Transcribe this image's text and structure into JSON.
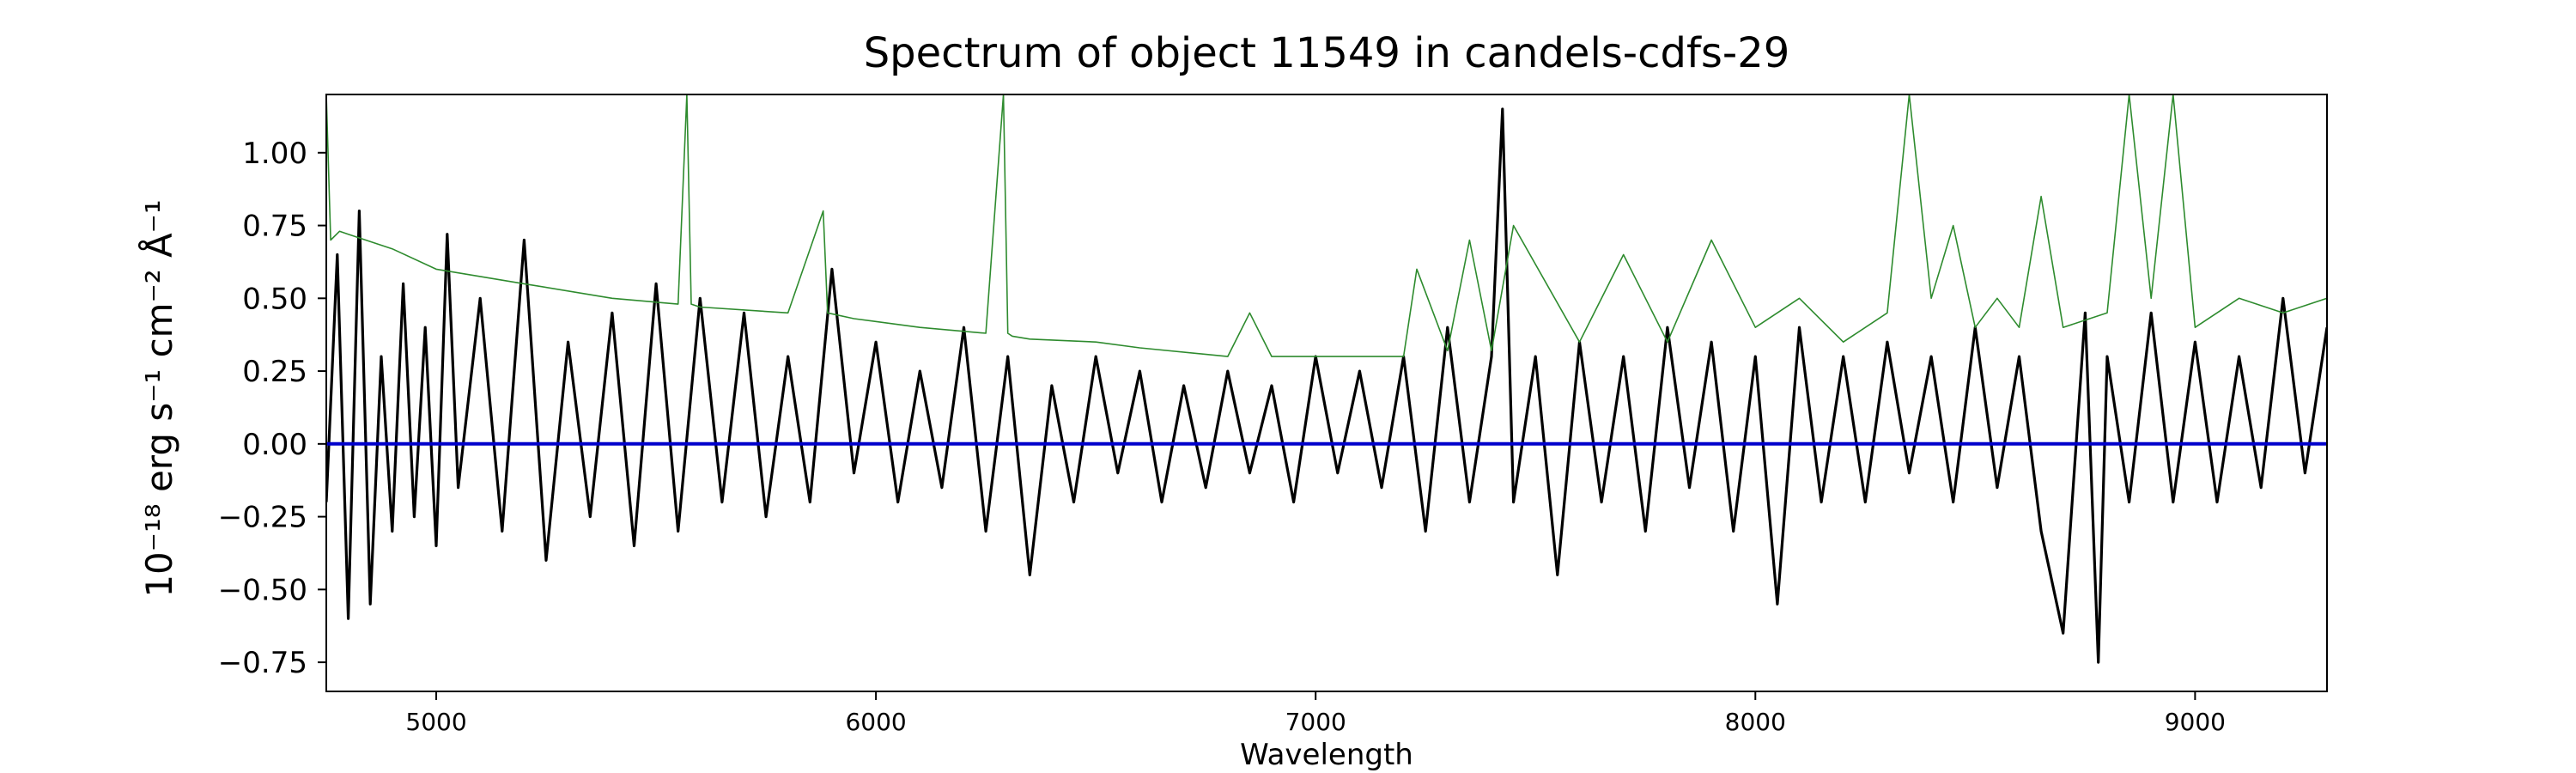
{
  "chart_data": {
    "type": "line",
    "title": "Spectrum of object 11549 in candels-cdfs-29",
    "xlabel": "Wavelength",
    "ylabel": "10⁻¹⁸ erg s⁻¹ cm⁻² Å⁻¹",
    "xlim": [
      4750,
      9300
    ],
    "ylim": [
      -0.85,
      1.2
    ],
    "x_ticks": [
      5000,
      6000,
      7000,
      8000,
      9000
    ],
    "y_ticks": [
      -0.75,
      -0.5,
      -0.25,
      0.0,
      0.25,
      0.5,
      0.75,
      1.0
    ],
    "x_tick_labels": [
      "5000",
      "6000",
      "7000",
      "8000",
      "9000"
    ],
    "y_tick_labels": [
      "−0.75",
      "−0.50",
      "−0.25",
      "0.00",
      "0.25",
      "0.50",
      "0.75",
      "1.00"
    ],
    "grid": false,
    "series": [
      {
        "color": "#000000",
        "x": [
          4750,
          4775,
          4800,
          4825,
          4850,
          4875,
          4900,
          4925,
          4950,
          4975,
          5000,
          5025,
          5050,
          5100,
          5150,
          5200,
          5250,
          5300,
          5350,
          5400,
          5450,
          5500,
          5550,
          5600,
          5650,
          5700,
          5750,
          5800,
          5850,
          5900,
          5950,
          6000,
          6050,
          6100,
          6150,
          6200,
          6250,
          6300,
          6350,
          6400,
          6450,
          6500,
          6550,
          6600,
          6650,
          6700,
          6750,
          6800,
          6850,
          6900,
          6950,
          7000,
          7050,
          7100,
          7150,
          7200,
          7250,
          7300,
          7350,
          7400,
          7425,
          7450,
          7500,
          7550,
          7600,
          7650,
          7700,
          7750,
          7800,
          7850,
          7900,
          7950,
          8000,
          8050,
          8100,
          8150,
          8200,
          8250,
          8300,
          8350,
          8400,
          8450,
          8500,
          8550,
          8600,
          8650,
          8700,
          8750,
          8780,
          8800,
          8850,
          8900,
          8950,
          9000,
          9050,
          9100,
          9150,
          9200,
          9250,
          9300
        ],
        "values": [
          -0.2,
          0.65,
          -0.6,
          0.8,
          -0.55,
          0.3,
          -0.3,
          0.55,
          -0.25,
          0.4,
          -0.35,
          0.72,
          -0.15,
          0.5,
          -0.3,
          0.7,
          -0.4,
          0.35,
          -0.25,
          0.45,
          -0.35,
          0.55,
          -0.3,
          0.5,
          -0.2,
          0.45,
          -0.25,
          0.3,
          -0.2,
          0.6,
          -0.1,
          0.35,
          -0.2,
          0.25,
          -0.15,
          0.4,
          -0.3,
          0.3,
          -0.45,
          0.2,
          -0.2,
          0.3,
          -0.1,
          0.25,
          -0.2,
          0.2,
          -0.15,
          0.25,
          -0.1,
          0.2,
          -0.2,
          0.3,
          -0.1,
          0.25,
          -0.15,
          0.3,
          -0.3,
          0.4,
          -0.2,
          0.3,
          1.15,
          -0.2,
          0.3,
          -0.45,
          0.35,
          -0.2,
          0.3,
          -0.3,
          0.4,
          -0.15,
          0.35,
          -0.3,
          0.3,
          -0.55,
          0.4,
          -0.2,
          0.3,
          -0.2,
          0.35,
          -0.1,
          0.3,
          -0.2,
          0.4,
          -0.15,
          0.3,
          -0.3,
          -0.65,
          0.45,
          -0.75,
          0.3,
          -0.2,
          0.45,
          -0.2,
          0.35,
          -0.2,
          0.3,
          -0.15,
          0.5,
          -0.1,
          0.4
        ]
      },
      {
        "color": "#2e8b2e",
        "x": [
          4750,
          4760,
          4780,
          4800,
          4900,
          5000,
          5200,
          5400,
          5550,
          5570,
          5580,
          5600,
          5800,
          5880,
          5890,
          5950,
          6100,
          6250,
          6290,
          6300,
          6310,
          6350,
          6500,
          6600,
          6800,
          6850,
          6900,
          7000,
          7200,
          7230,
          7300,
          7350,
          7400,
          7450,
          7600,
          7700,
          7800,
          7900,
          8000,
          8100,
          8200,
          8300,
          8350,
          8400,
          8450,
          8500,
          8550,
          8600,
          8650,
          8700,
          8800,
          8850,
          8900,
          8950,
          9000,
          9100,
          9200,
          9300
        ],
        "values": [
          1.2,
          0.7,
          0.73,
          0.72,
          0.67,
          0.6,
          0.55,
          0.5,
          0.48,
          1.2,
          0.48,
          0.47,
          0.45,
          0.8,
          0.45,
          0.43,
          0.4,
          0.38,
          1.2,
          0.38,
          0.37,
          0.36,
          0.35,
          0.33,
          0.3,
          0.45,
          0.3,
          0.3,
          0.3,
          0.6,
          0.32,
          0.7,
          0.32,
          0.75,
          0.35,
          0.65,
          0.35,
          0.7,
          0.4,
          0.5,
          0.35,
          0.45,
          1.2,
          0.5,
          0.75,
          0.4,
          0.5,
          0.4,
          0.85,
          0.4,
          0.45,
          1.2,
          0.5,
          1.2,
          0.4,
          0.5,
          0.45,
          0.5
        ]
      },
      {
        "color": "#0000cc",
        "x": [
          4750,
          9300
        ],
        "values": [
          0.0,
          0.0
        ]
      }
    ]
  }
}
